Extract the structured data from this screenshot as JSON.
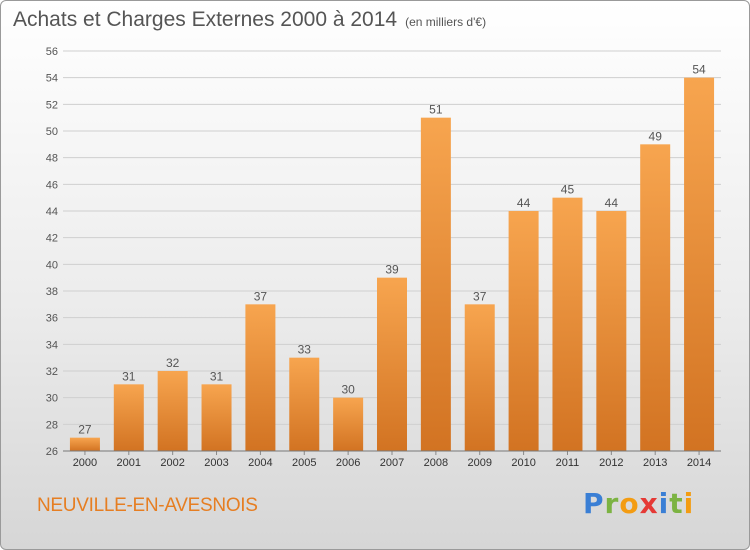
{
  "header": {
    "title": "Achats et Charges Externes 2000 à 2014",
    "unit": "(en milliers d'€)"
  },
  "footer": {
    "commune": "NEUVILLE-EN-AVESNOIS"
  },
  "logo": {
    "text": "Proxiti",
    "letters": [
      {
        "ch": "P",
        "color": "#3a7fd5"
      },
      {
        "ch": "r",
        "color": "#7cb342"
      },
      {
        "ch": "o",
        "color": "#f39c12"
      },
      {
        "ch": "x",
        "color": "#e53935"
      },
      {
        "ch": "i",
        "color": "#3a7fd5"
      },
      {
        "ch": "t",
        "color": "#7cb342"
      },
      {
        "ch": "i",
        "color": "#f39c12"
      }
    ]
  },
  "colors": {
    "bar_light": "#f7a54f",
    "bar_dark": "#d27322",
    "grid": "#cfcfcf",
    "text": "#555555"
  },
  "chart_data": {
    "type": "bar",
    "title": "Achats et Charges Externes 2000 à 2014",
    "subtitle": "(en milliers d'€)",
    "xlabel": "",
    "ylabel": "",
    "categories": [
      "2000",
      "2001",
      "2002",
      "2003",
      "2004",
      "2005",
      "2006",
      "2007",
      "2008",
      "2009",
      "2010",
      "2011",
      "2012",
      "2013",
      "2014"
    ],
    "values": [
      27,
      31,
      32,
      31,
      37,
      33,
      30,
      39,
      51,
      37,
      44,
      45,
      44,
      49,
      54
    ],
    "ylim": [
      26,
      56
    ],
    "yticks": [
      26,
      28,
      30,
      32,
      34,
      36,
      38,
      40,
      42,
      44,
      46,
      48,
      50,
      52,
      54,
      56
    ],
    "grid": true,
    "data_labels": true
  }
}
